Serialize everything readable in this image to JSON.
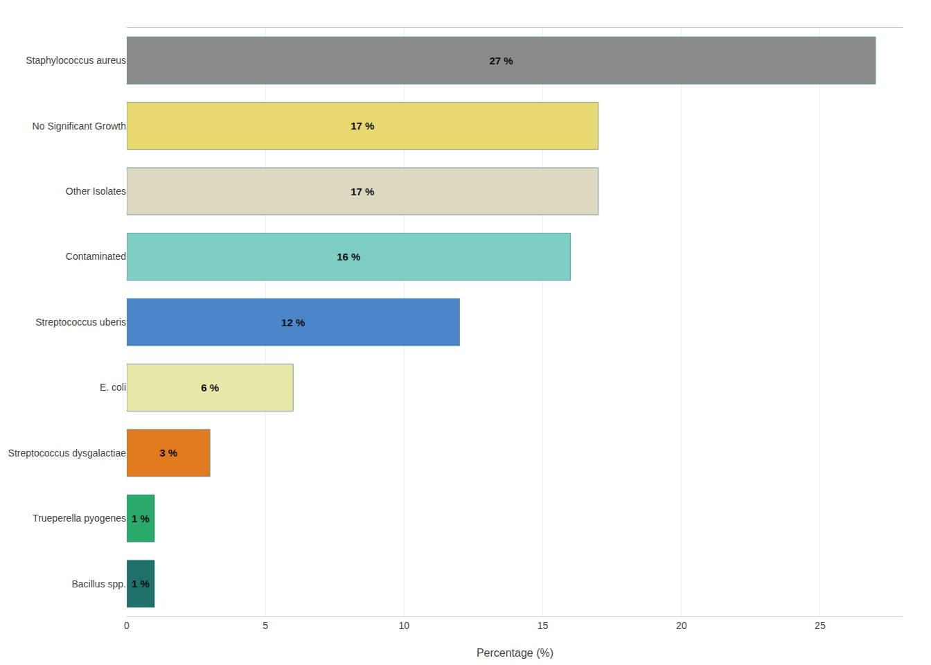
{
  "chart_data": {
    "type": "bar",
    "orientation": "horizontal",
    "categories": [
      "Bacillus spp.",
      "Trueperella pyogenes",
      "Streptococcus dysgalactiae",
      "E. coli",
      "Streptococcus uberis",
      "Contaminated",
      "Other Isolates",
      "No Significant Growth",
      "Staphylococcus aureus"
    ],
    "values": [
      1,
      1,
      3,
      6,
      12,
      16,
      17,
      17,
      27
    ],
    "value_labels": [
      "1 %",
      "1 %",
      "3 %",
      "6 %",
      "12 %",
      "16 %",
      "17 %",
      "17 %",
      "27 %"
    ],
    "colors": [
      "#1e7068",
      "#2aaa6a",
      "#e07b20",
      "#e8e8a8",
      "#4a86c8",
      "#7ecec4",
      "#ddd8c0",
      "#e8d870",
      "#8a8a8a"
    ],
    "xlabel": "Percentage (%)",
    "xlim": [
      0,
      28
    ],
    "xticks": [
      0,
      5,
      10,
      15,
      20,
      25
    ],
    "grid": true,
    "data_labels": true
  }
}
